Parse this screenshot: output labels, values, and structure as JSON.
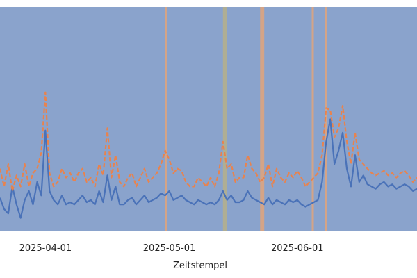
{
  "chart_data": {
    "type": "line",
    "title": "",
    "xlabel": "Zeitstempel",
    "ylabel": "",
    "xlim": [
      "2025-03-21",
      "2025-06-30"
    ],
    "ylim": [
      0,
      1
    ],
    "grid": false,
    "legend": "none",
    "x_tick_labels": [
      "2025-04-01",
      "2025-05-01",
      "2025-06-01"
    ],
    "x_ticks": [
      "2025-04-01",
      "2025-05-01",
      "2025-06-01"
    ],
    "colors": {
      "plot_background": "#8aa3cc",
      "series_1": "#4a72b8",
      "series_2": "#e8834e",
      "band_orange": "#e0a47a",
      "band_olive": "#b5b08a"
    },
    "shaded_regions": [
      {
        "start": "2025-04-30",
        "end": "2025-04-30T12:00",
        "color": "#e0a47a"
      },
      {
        "start": "2025-05-14",
        "end": "2025-05-15",
        "color": "#b5b08a"
      },
      {
        "start": "2025-05-23",
        "end": "2025-05-24",
        "color": "#e0a47a"
      },
      {
        "start": "2025-06-04T12:00",
        "end": "2025-06-04T18:00",
        "color": "#e0a47a"
      },
      {
        "start": "2025-06-07T18:00",
        "end": "2025-06-08",
        "color": "#e0a47a"
      }
    ],
    "series": [
      {
        "style": "solid",
        "x": [
          "2025-03-21",
          "2025-03-22",
          "2025-03-23",
          "2025-03-24",
          "2025-03-25",
          "2025-03-26",
          "2025-03-27",
          "2025-03-28",
          "2025-03-29",
          "2025-03-30",
          "2025-03-31",
          "2025-04-01",
          "2025-04-02",
          "2025-04-03",
          "2025-04-04",
          "2025-04-05",
          "2025-04-06",
          "2025-04-07",
          "2025-04-08",
          "2025-04-09",
          "2025-04-10",
          "2025-04-11",
          "2025-04-12",
          "2025-04-13",
          "2025-04-14",
          "2025-04-15",
          "2025-04-16",
          "2025-04-17",
          "2025-04-18",
          "2025-04-19",
          "2025-04-20",
          "2025-04-21",
          "2025-04-22",
          "2025-04-23",
          "2025-04-24",
          "2025-04-25",
          "2025-04-26",
          "2025-04-27",
          "2025-04-28",
          "2025-04-29",
          "2025-04-30",
          "2025-05-01",
          "2025-05-02",
          "2025-05-03",
          "2025-05-04",
          "2025-05-05",
          "2025-05-06",
          "2025-05-07",
          "2025-05-08",
          "2025-05-09",
          "2025-05-10",
          "2025-05-11",
          "2025-05-12",
          "2025-05-13",
          "2025-05-14",
          "2025-05-15",
          "2025-05-16",
          "2025-05-17",
          "2025-05-18",
          "2025-05-19",
          "2025-05-20",
          "2025-05-21",
          "2025-05-22",
          "2025-05-23",
          "2025-05-24",
          "2025-05-25",
          "2025-05-26",
          "2025-05-27",
          "2025-05-28",
          "2025-05-29",
          "2025-05-30",
          "2025-05-31",
          "2025-06-01",
          "2025-06-02",
          "2025-06-03",
          "2025-06-04",
          "2025-06-05",
          "2025-06-06",
          "2025-06-07",
          "2025-06-08",
          "2025-06-09",
          "2025-06-10",
          "2025-06-11",
          "2025-06-12",
          "2025-06-13",
          "2025-06-14",
          "2025-06-15",
          "2025-06-16",
          "2025-06-17",
          "2025-06-18",
          "2025-06-19",
          "2025-06-20",
          "2025-06-21",
          "2025-06-22",
          "2025-06-23",
          "2025-06-24",
          "2025-06-25",
          "2025-06-26",
          "2025-06-27",
          "2025-06-28",
          "2025-06-29",
          "2025-06-30"
        ],
        "y": [
          0.15,
          0.1,
          0.08,
          0.2,
          0.12,
          0.06,
          0.14,
          0.18,
          0.12,
          0.22,
          0.16,
          0.45,
          0.18,
          0.14,
          0.12,
          0.16,
          0.12,
          0.13,
          0.12,
          0.14,
          0.16,
          0.13,
          0.14,
          0.12,
          0.18,
          0.13,
          0.25,
          0.14,
          0.2,
          0.12,
          0.12,
          0.14,
          0.15,
          0.12,
          0.14,
          0.16,
          0.13,
          0.14,
          0.15,
          0.17,
          0.16,
          0.18,
          0.14,
          0.15,
          0.16,
          0.14,
          0.13,
          0.12,
          0.14,
          0.13,
          0.12,
          0.13,
          0.12,
          0.14,
          0.18,
          0.14,
          0.16,
          0.13,
          0.13,
          0.14,
          0.18,
          0.15,
          0.14,
          0.13,
          0.12,
          0.15,
          0.12,
          0.14,
          0.13,
          0.12,
          0.14,
          0.13,
          0.14,
          0.12,
          0.11,
          0.12,
          0.13,
          0.14,
          0.22,
          0.4,
          0.5,
          0.3,
          0.36,
          0.44,
          0.28,
          0.2,
          0.34,
          0.22,
          0.25,
          0.21,
          0.2,
          0.19,
          0.21,
          0.22,
          0.2,
          0.21,
          0.19,
          0.2,
          0.21,
          0.2,
          0.18,
          0.19
        ]
      },
      {
        "style": "dashed",
        "x": [
          "2025-03-21",
          "2025-03-22",
          "2025-03-23",
          "2025-03-24",
          "2025-03-25",
          "2025-03-26",
          "2025-03-27",
          "2025-03-28",
          "2025-03-29",
          "2025-03-30",
          "2025-03-31",
          "2025-04-01",
          "2025-04-02",
          "2025-04-03",
          "2025-04-04",
          "2025-04-05",
          "2025-04-06",
          "2025-04-07",
          "2025-04-08",
          "2025-04-09",
          "2025-04-10",
          "2025-04-11",
          "2025-04-12",
          "2025-04-13",
          "2025-04-14",
          "2025-04-15",
          "2025-04-16",
          "2025-04-17",
          "2025-04-18",
          "2025-04-19",
          "2025-04-20",
          "2025-04-21",
          "2025-04-22",
          "2025-04-23",
          "2025-04-24",
          "2025-04-25",
          "2025-04-26",
          "2025-04-27",
          "2025-04-28",
          "2025-04-29",
          "2025-04-30",
          "2025-05-01",
          "2025-05-02",
          "2025-05-03",
          "2025-05-04",
          "2025-05-05",
          "2025-05-06",
          "2025-05-07",
          "2025-05-08",
          "2025-05-09",
          "2025-05-10",
          "2025-05-11",
          "2025-05-12",
          "2025-05-13",
          "2025-05-14",
          "2025-05-15",
          "2025-05-16",
          "2025-05-17",
          "2025-05-18",
          "2025-05-19",
          "2025-05-20",
          "2025-05-21",
          "2025-05-22",
          "2025-05-23",
          "2025-05-24",
          "2025-05-25",
          "2025-05-26",
          "2025-05-27",
          "2025-05-28",
          "2025-05-29",
          "2025-05-30",
          "2025-05-31",
          "2025-06-01",
          "2025-06-02",
          "2025-06-03",
          "2025-06-04",
          "2025-06-05",
          "2025-06-06",
          "2025-06-07",
          "2025-06-08",
          "2025-06-09",
          "2025-06-10",
          "2025-06-11",
          "2025-06-12",
          "2025-06-13",
          "2025-06-14",
          "2025-06-15",
          "2025-06-16",
          "2025-06-17",
          "2025-06-18",
          "2025-06-19",
          "2025-06-20",
          "2025-06-21",
          "2025-06-22",
          "2025-06-23",
          "2025-06-24",
          "2025-06-25",
          "2025-06-26",
          "2025-06-27",
          "2025-06-28",
          "2025-06-29",
          "2025-06-30"
        ],
        "y": [
          0.28,
          0.2,
          0.3,
          0.18,
          0.25,
          0.2,
          0.3,
          0.2,
          0.26,
          0.28,
          0.35,
          0.62,
          0.26,
          0.2,
          0.22,
          0.28,
          0.24,
          0.26,
          0.22,
          0.26,
          0.28,
          0.22,
          0.24,
          0.2,
          0.3,
          0.25,
          0.46,
          0.24,
          0.34,
          0.22,
          0.2,
          0.24,
          0.26,
          0.2,
          0.24,
          0.28,
          0.22,
          0.24,
          0.26,
          0.3,
          0.36,
          0.32,
          0.26,
          0.28,
          0.27,
          0.22,
          0.2,
          0.2,
          0.24,
          0.22,
          0.2,
          0.24,
          0.2,
          0.26,
          0.4,
          0.28,
          0.3,
          0.22,
          0.24,
          0.24,
          0.34,
          0.28,
          0.26,
          0.22,
          0.24,
          0.3,
          0.2,
          0.28,
          0.24,
          0.22,
          0.26,
          0.24,
          0.27,
          0.24,
          0.2,
          0.22,
          0.24,
          0.26,
          0.34,
          0.55,
          0.54,
          0.42,
          0.46,
          0.56,
          0.4,
          0.3,
          0.44,
          0.32,
          0.3,
          0.28,
          0.26,
          0.25,
          0.26,
          0.27,
          0.25,
          0.26,
          0.24,
          0.26,
          0.27,
          0.25,
          0.22,
          0.24
        ]
      }
    ]
  }
}
